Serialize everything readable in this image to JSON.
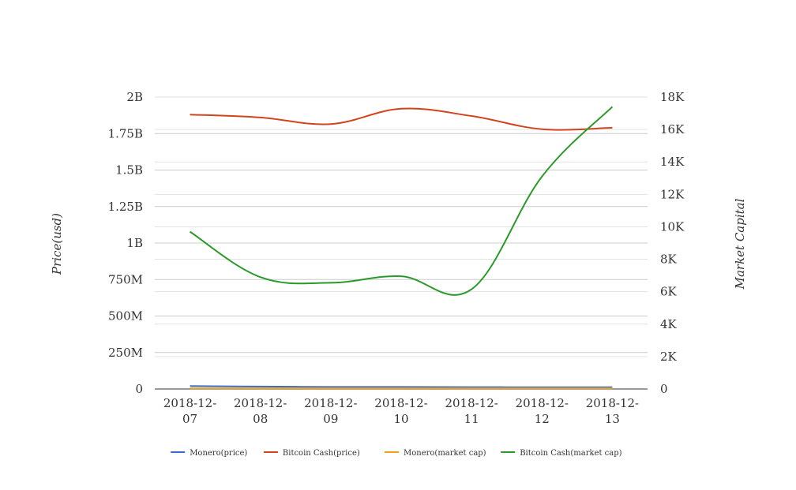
{
  "chart_data": {
    "type": "line",
    "title": "",
    "categories": [
      "2018-12-07",
      "2018-12-08",
      "2018-12-09",
      "2018-12-10",
      "2018-12-11",
      "2018-12-12",
      "2018-12-13"
    ],
    "category_labels": [
      [
        "2018-12-",
        "07"
      ],
      [
        "2018-12-",
        "08"
      ],
      [
        "2018-12-",
        "09"
      ],
      [
        "2018-12-",
        "10"
      ],
      [
        "2018-12-",
        "11"
      ],
      [
        "2018-12-",
        "12"
      ],
      [
        "2018-12-",
        "13"
      ]
    ],
    "y_left": {
      "label": "Price(usd)",
      "ylim": [
        0,
        2000000000
      ],
      "ticks": [
        0,
        250000000,
        500000000,
        750000000,
        1000000000,
        1250000000,
        1500000000,
        1750000000,
        2000000000
      ],
      "tick_labels": [
        "0",
        "250M",
        "500M",
        "750M",
        "1B",
        "1.25B",
        "1.5B",
        "1.75B",
        "2B"
      ]
    },
    "y_right": {
      "label": "Market Capital",
      "ylim": [
        0,
        18000
      ],
      "ticks": [
        0,
        2000,
        4000,
        6000,
        8000,
        10000,
        12000,
        14000,
        16000,
        18000
      ],
      "tick_labels": [
        "0",
        "2K",
        "4K",
        "6K",
        "8K",
        "10K",
        "12K",
        "14K",
        "16K",
        "18K"
      ]
    },
    "grid": true,
    "legend_position": "bottom",
    "series": [
      {
        "name": "Monero(price)",
        "axis": "left",
        "color": "#3b6cc4",
        "values": [
          20000000,
          17000000,
          14000000,
          14000000,
          13000000,
          12000000,
          12000000
        ]
      },
      {
        "name": "Bitcoin Cash(price)",
        "axis": "left",
        "color": "#d2431e",
        "values": [
          1880000000,
          1860000000,
          1815000000,
          1920000000,
          1870000000,
          1780000000,
          1790000000
        ]
      },
      {
        "name": "Monero(market cap)",
        "axis": "left",
        "color": "#f0a020",
        "values": [
          5000000,
          5000000,
          5000000,
          5000000,
          5000000,
          5000000,
          5000000
        ]
      },
      {
        "name": "Bitcoin Cash(market cap)",
        "axis": "right",
        "color": "#2a9a2a",
        "values": [
          9700,
          6900,
          6550,
          6950,
          6150,
          13100,
          17400
        ]
      }
    ]
  }
}
